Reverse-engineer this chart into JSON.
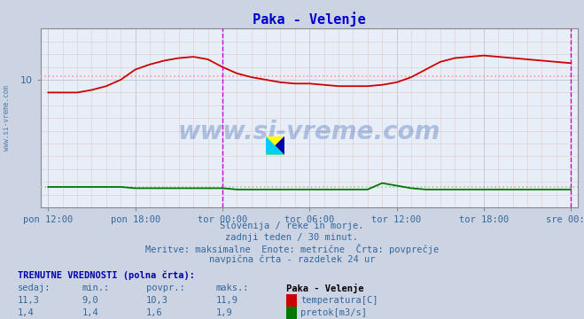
{
  "title": "Paka - Velenje",
  "title_color": "#0000cc",
  "bg_color": "#ccd4e4",
  "plot_bg_color": "#e8eef8",
  "watermark_text": "www.si-vreme.com",
  "watermark_color": "#2255aa",
  "watermark_alpha": 0.3,
  "ylim": [
    0,
    14
  ],
  "ytick_val": 10,
  "ytick_label": "10",
  "xtick_labels": [
    "pon 12:00",
    "pon 18:00",
    "tor 00:00",
    "tor 06:00",
    "tor 12:00",
    "tor 18:00",
    "sre 00:00"
  ],
  "xtick_positions": [
    0,
    6,
    12,
    18,
    24,
    30,
    36
  ],
  "n_points": 37,
  "temp_color": "#cc0000",
  "flow_color": "#007700",
  "avg_temp_color": "#ff9999",
  "avg_flow_color": "#99cc99",
  "vline_color": "#cc00cc",
  "vline_positions": [
    12,
    36
  ],
  "hline_temp_avg": 10.3,
  "hline_flow_avg": 1.6,
  "temp_data": [
    9.0,
    9.0,
    9.0,
    9.2,
    9.5,
    10.0,
    10.8,
    11.2,
    11.5,
    11.7,
    11.8,
    11.6,
    11.0,
    10.5,
    10.2,
    10.0,
    9.8,
    9.7,
    9.7,
    9.6,
    9.5,
    9.5,
    9.5,
    9.6,
    9.8,
    10.2,
    10.8,
    11.4,
    11.7,
    11.8,
    11.9,
    11.8,
    11.7,
    11.6,
    11.5,
    11.4,
    11.3
  ],
  "flow_data": [
    1.6,
    1.6,
    1.6,
    1.6,
    1.6,
    1.6,
    1.5,
    1.5,
    1.5,
    1.5,
    1.5,
    1.5,
    1.5,
    1.4,
    1.4,
    1.4,
    1.4,
    1.4,
    1.4,
    1.4,
    1.4,
    1.4,
    1.4,
    1.9,
    1.7,
    1.5,
    1.4,
    1.4,
    1.4,
    1.4,
    1.4,
    1.4,
    1.4,
    1.4,
    1.4,
    1.4,
    1.4
  ],
  "footer_color": "#336699",
  "table_header_color": "#0000aa",
  "table_label_color": "#336699",
  "table_title": "Paka - Velenje",
  "table_headers": [
    "sedaj:",
    "min.:",
    "povpr.:",
    "maks.:"
  ],
  "table_row1_label": "temperatura[C]",
  "table_row1_values": [
    "11,3",
    "9,0",
    "10,3",
    "11,9"
  ],
  "table_row1_color": "#cc0000",
  "table_row2_label": "pretok[m3/s]",
  "table_row2_values": [
    "1,4",
    "1,4",
    "1,6",
    "1,9"
  ],
  "table_row2_color": "#007700",
  "left_label_color": "#336699",
  "left_label_text": "www.si-vreme.com",
  "footer_line1": "Slovenija / reke in morje.",
  "footer_line2": "zadnji teden / 30 minut.",
  "footer_line3": "Meritve: maksimalne  Enote: metrične  Črta: povprečje",
  "footer_line4": "navpična črta - razdelek 24 ur"
}
